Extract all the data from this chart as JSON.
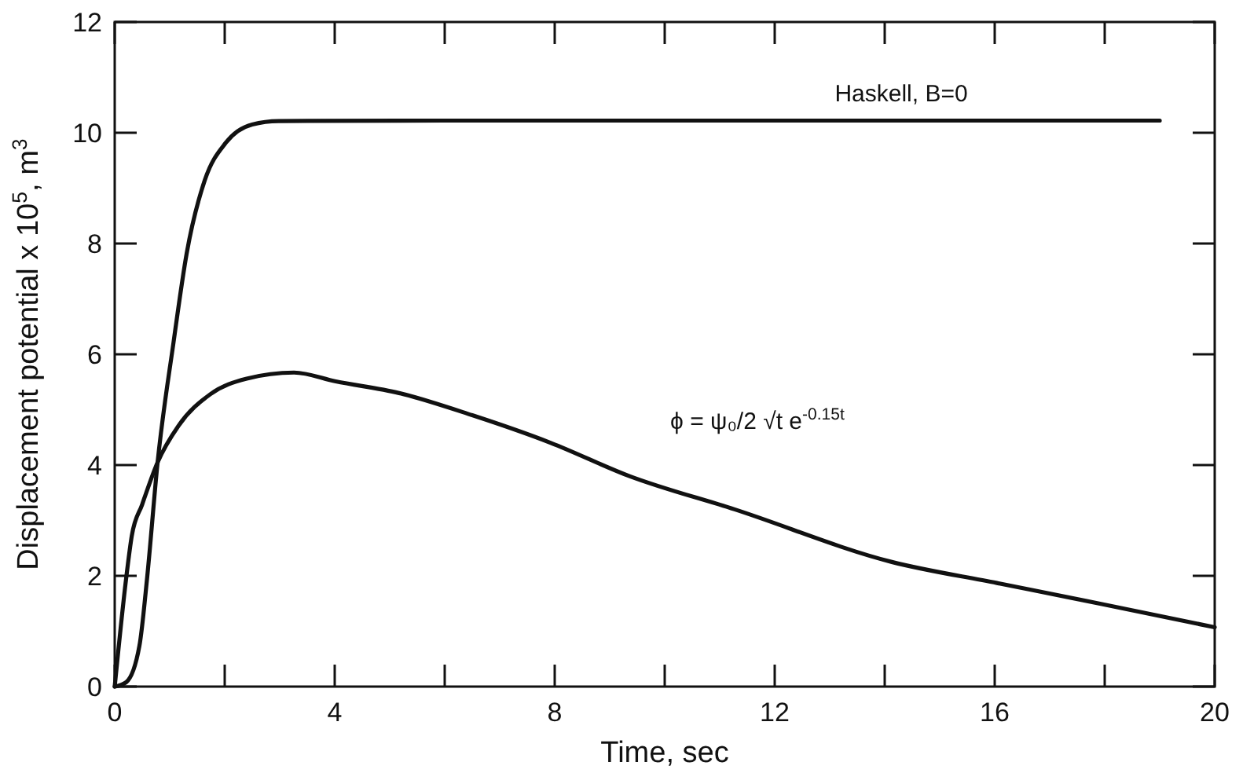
{
  "chart_data": {
    "type": "line",
    "xlabel": "Time, sec",
    "ylabel": "Displacement potential x 10$^{5}$, m$^{3}$",
    "xlim": [
      0,
      20
    ],
    "ylim": [
      0,
      12
    ],
    "xticks": [
      0,
      {
        "value": 2,
        "label": null
      },
      4,
      {
        "value": 6,
        "label": null
      },
      8,
      {
        "value": 10,
        "label": null
      },
      12,
      {
        "value": 14,
        "label": null
      },
      16,
      {
        "value": 18,
        "label": null
      },
      20
    ],
    "yticks": [
      0,
      2,
      4,
      6,
      8,
      10,
      12
    ],
    "grid": false,
    "marker": "none",
    "line_style": "solid",
    "series": [
      {
        "name": "Haskell, B=0",
        "color": "#111111",
        "x": [
          0,
          0.21,
          0.45,
          0.59,
          0.78,
          1.07,
          1.31,
          1.64,
          2.02,
          2.5,
          2.98,
          6,
          10,
          14,
          19
        ],
        "values": [
          0,
          0.08,
          0.74,
          1.97,
          4.05,
          6.22,
          7.83,
          9.15,
          9.82,
          10.15,
          10.21,
          10.22,
          10.22,
          10.22,
          10.22
        ]
      },
      {
        "name": "ϕ = ψ₀/2 √t e$^{-0.15t}$",
        "color": "#111111",
        "x": [
          0,
          0.21,
          0.31,
          0.5,
          0.78,
          1.16,
          1.74,
          2.4,
          3.26,
          4.02,
          5.17,
          6.5,
          7.93,
          9.36,
          11.27,
          14.13,
          16.04,
          17.95,
          20
        ],
        "values": [
          0,
          1.97,
          2.72,
          3.29,
          4.05,
          4.71,
          5.28,
          5.56,
          5.67,
          5.51,
          5.3,
          4.9,
          4.4,
          3.8,
          3.2,
          2.25,
          1.87,
          1.49,
          1.07
        ]
      }
    ]
  }
}
